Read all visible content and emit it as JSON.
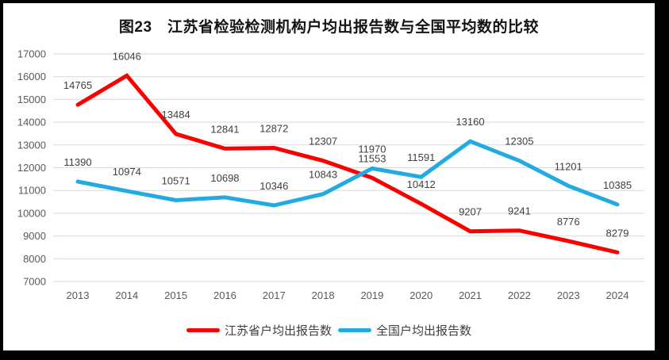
{
  "title": "图23　江苏省检验检测机构户均出报告数与全国平均数的比较",
  "chart_data": {
    "type": "line",
    "title": "图23　江苏省检验检测机构户均出报告数与全国平均数的比较",
    "categories": [
      "2013",
      "2014",
      "2015",
      "2016",
      "2017",
      "2018",
      "2019",
      "2020",
      "2021",
      "2022",
      "2023",
      "2024"
    ],
    "series": [
      {
        "name": "江苏省户均出报告数",
        "color": "#FA0000",
        "values": [
          14765,
          16046,
          13484,
          12841,
          12872,
          12307,
          11553,
          10412,
          9207,
          9241,
          8776,
          8279
        ]
      },
      {
        "name": "全国户均出报告数",
        "color": "#22ABE2",
        "values": [
          11390,
          10974,
          10571,
          10698,
          10346,
          10843,
          11970,
          11591,
          13160,
          12305,
          11201,
          10385
        ]
      }
    ],
    "ylim": [
      7000,
      17000
    ],
    "ytick_step": 1000,
    "grid": true,
    "data_labels": true,
    "legend_position": "bottom",
    "xlabel": "",
    "ylabel": ""
  },
  "style": {
    "gridline_color": "#D9D9D9",
    "axis_tick_color": "#595959",
    "data_label_color": "#404040",
    "background": "#FFFFFF",
    "frame_color": "#000000"
  }
}
